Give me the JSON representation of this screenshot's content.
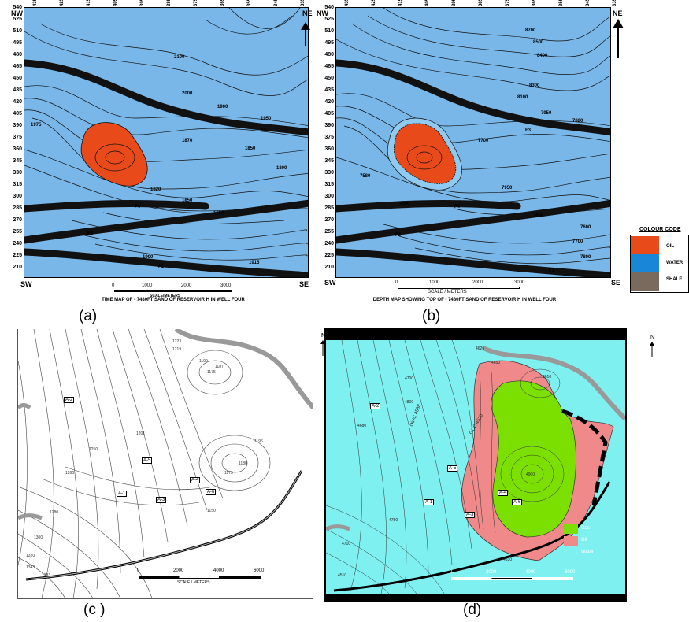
{
  "panel_a": {
    "label": "(a)",
    "corners": {
      "nw": "NW",
      "ne": "NE",
      "sw": "SW",
      "se": "SE"
    },
    "left_ticks": [
      "540",
      "525",
      "510",
      "495",
      "480",
      "465",
      "450",
      "435",
      "420",
      "405",
      "390",
      "375",
      "360",
      "345",
      "330",
      "315",
      "300",
      "285",
      "270",
      "255",
      "240",
      "225",
      "210"
    ],
    "top_ticks": [
      "435",
      "425",
      "415",
      "405",
      "395",
      "385",
      "375",
      "365",
      "355",
      "345",
      "335"
    ],
    "contours": [
      "2100",
      "2000",
      "1900",
      "1950",
      "1870",
      "1850",
      "1800",
      "1820",
      "1850",
      "1880",
      "1900",
      "1915",
      "1975"
    ],
    "faults": [
      "F3",
      "F4",
      "F2",
      "F1"
    ],
    "scale_ticks": [
      "0",
      "1000",
      "2000",
      "3000"
    ],
    "scale_label": "SCALE/METERS",
    "caption": "TIME MAP OF - 7480FT SAND OF RESERVOIR H IN WELL FOUR"
  },
  "panel_b": {
    "label": "(b)",
    "corners": {
      "nw": "NW",
      "ne": "NE",
      "sw": "SW",
      "se": "SE"
    },
    "left_ticks": [
      "540",
      "525",
      "510",
      "495",
      "480",
      "465",
      "450",
      "435",
      "420",
      "405",
      "390",
      "375",
      "360",
      "345",
      "330",
      "315",
      "300",
      "285",
      "270",
      "255",
      "240",
      "225",
      "210"
    ],
    "top_ticks": [
      "435",
      "425",
      "415",
      "405",
      "395",
      "385",
      "375",
      "365",
      "355",
      "345",
      "335"
    ],
    "contours": [
      "8700",
      "8500",
      "8400",
      "8300",
      "8100",
      "7950",
      "7700",
      "7820",
      "7950",
      "7580",
      "7560",
      "7660",
      "7600",
      "7700",
      "7800"
    ],
    "faults": [
      "F3",
      "F4",
      "F2",
      "F1"
    ],
    "scale_ticks": [
      "0",
      "1000",
      "2000",
      "3000"
    ],
    "scale_label": "SCALE / METERS",
    "caption": "DEPTH MAP SHOWING TOP OF - 7480FT SAND OF RESERVOIR H IN WELL FOUR"
  },
  "legend": {
    "title": "COLOUR CODE",
    "items": [
      {
        "label": "OIL",
        "color": "#e84a1a"
      },
      {
        "label": "WATER",
        "color": "#1a86d8"
      },
      {
        "label": "SHALE",
        "color": "#7a6a5e"
      }
    ]
  },
  "panel_c": {
    "label": "(c )",
    "north": "N",
    "wells": [
      "A-2",
      "A-5",
      "A-4",
      "A-1",
      "A-3",
      "A-6"
    ],
    "contours": [
      "1223",
      "1219",
      "1190",
      "1187",
      "1175",
      "1196",
      "1180",
      "1175",
      "1150",
      "1201",
      "1250",
      "1260",
      "1280",
      "1300",
      "1320",
      "1343",
      "1333"
    ],
    "scale_ticks": [
      "0",
      "2000",
      "4000",
      "6000"
    ],
    "scale_label": "SCALE / METERS"
  },
  "panel_d": {
    "label": "(d)",
    "north": "N",
    "wells": [
      "A-2",
      "A-5",
      "A-4",
      "A-1",
      "A-3",
      "A-6"
    ],
    "contours": [
      "4620",
      "4650",
      "4700",
      "4800",
      "4610",
      "4900",
      "4530",
      "4510",
      "4710",
      "4680",
      "4750"
    ],
    "contact_labels": [
      "OWC 4588",
      "GOC 4520"
    ],
    "legend": [
      {
        "label": "Gas",
        "color": "#7be000"
      },
      {
        "label": "Oil",
        "color": "#f08a8a"
      },
      {
        "label": "Water",
        "color": "#7ff0f0"
      }
    ],
    "scale_ticks": [
      "0",
      "2000",
      "4000",
      "6000"
    ]
  }
}
